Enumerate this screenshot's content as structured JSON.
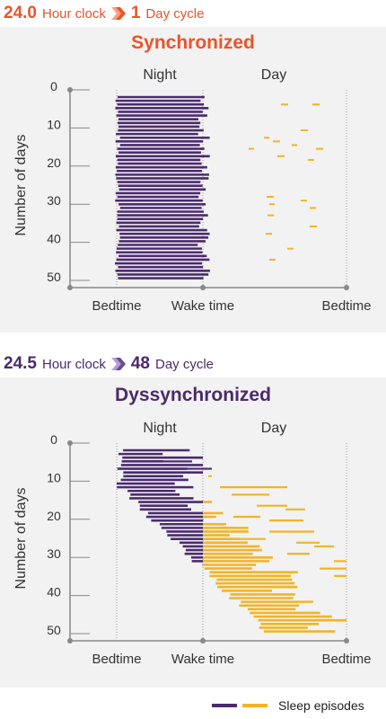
{
  "colors": {
    "sync": "#e8542a",
    "dys": "#4a2a68",
    "night_bar": "#4b2b6e",
    "day_bar": "#f0b429",
    "axis": "#888888"
  },
  "panel1": {
    "header": {
      "period": "24.0",
      "period_label": "Hour clock",
      "cycle": "1",
      "cycle_label": "Day cycle"
    },
    "title": "Synchronized",
    "col_night": "Night",
    "col_day": "Day",
    "ylabel": "Number of days",
    "yticks": [
      "0",
      "10",
      "20",
      "30",
      "40",
      "50"
    ],
    "xticks": [
      "Bedtime",
      "Wake time",
      "Bedtime"
    ]
  },
  "panel2": {
    "header": {
      "period": "24.5",
      "period_label": "Hour clock",
      "cycle": "48",
      "cycle_label": "Day cycle"
    },
    "title": "Dyssynchronized",
    "col_night": "Night",
    "col_day": "Day",
    "ylabel": "Number of days",
    "yticks": [
      "0",
      "10",
      "20",
      "30",
      "40",
      "50"
    ],
    "xticks": [
      "Bedtime",
      "Wake time",
      "Bedtime"
    ]
  },
  "legend": {
    "label": "Sleep episodes"
  },
  "chart_data": [
    {
      "type": "timeline",
      "title": "Synchronized",
      "xlabel": "",
      "ylabel": "Number of days",
      "x_ticks": [
        "Bedtime",
        "Wake time",
        "Bedtime"
      ],
      "ylim": [
        0,
        50
      ],
      "series": [
        {
          "description": "night sleep episodes, days 1-50, start near bedtime, end near wake time"
        },
        {
          "description": "sparse short daytime naps"
        }
      ]
    },
    {
      "type": "timeline",
      "title": "Dyssynchronized",
      "xlabel": "",
      "ylabel": "Number of days",
      "x_ticks": [
        "Bedtime",
        "Wake time",
        "Bedtime"
      ],
      "ylim": [
        0,
        50
      ],
      "series": [
        {
          "description": "sleep episodes drifting later each day, night portion days 1-40"
        },
        {
          "description": "sleep episodes drifting into day, days 10-50"
        }
      ]
    }
  ]
}
